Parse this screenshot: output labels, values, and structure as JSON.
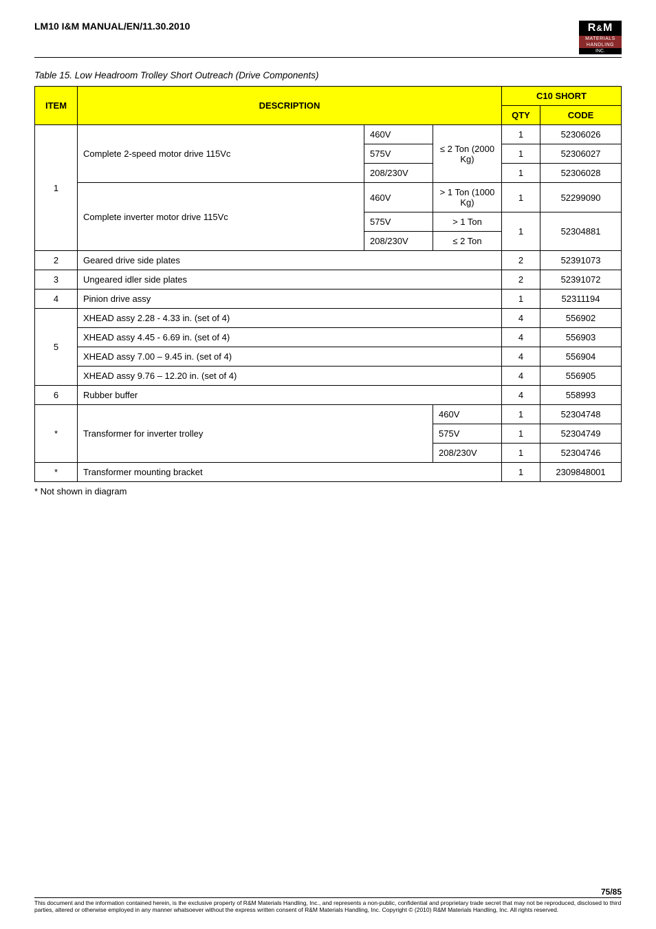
{
  "header": {
    "doc_title": "LM10 I&M MANUAL/EN/11.30.2010",
    "logo": {
      "top": "R&M",
      "mid_line1": "MATERIALS",
      "mid_line2": "HANDLING",
      "bot": "INC."
    }
  },
  "caption": "Table 15. Low Headroom Trolley Short Outreach (Drive Components)",
  "table": {
    "headers": {
      "item": "ITEM",
      "description": "DESCRIPTION",
      "c10_short": "C10 SHORT",
      "qty": "QTY",
      "code": "CODE"
    },
    "item1": {
      "num": "1",
      "desc_a": "Complete 2-speed motor drive 115Vc",
      "desc_b": "Complete inverter motor drive 115Vc",
      "volt_460": "460V",
      "volt_575": "575V",
      "volt_208": "208/230V",
      "range_le2": "≤ 2 Ton (2000 Kg)",
      "range_gt1": "> 1 Ton (1000 Kg)",
      "range_gt1_only": "> 1 Ton",
      "range_le2_only": "≤ 2 Ton",
      "rows": [
        {
          "qty": "1",
          "code": "52306026"
        },
        {
          "qty": "1",
          "code": "52306027"
        },
        {
          "qty": "1",
          "code": "52306028"
        },
        {
          "qty": "1",
          "code": "52299090"
        },
        {
          "qty": "1",
          "code": "52304881"
        }
      ]
    },
    "simple_rows": [
      {
        "item": "2",
        "desc": "Geared drive side plates",
        "qty": "2",
        "code": "52391073"
      },
      {
        "item": "3",
        "desc": "Ungeared idler side plates",
        "qty": "2",
        "code": "52391072"
      },
      {
        "item": "4",
        "desc": "Pinion drive assy",
        "qty": "1",
        "code": "52311194"
      }
    ],
    "item5": {
      "num": "5",
      "rows": [
        {
          "desc": "XHEAD assy 2.28 - 4.33 in. (set of 4)",
          "qty": "4",
          "code": "556902"
        },
        {
          "desc": "XHEAD assy 4.45 - 6.69 in. (set of 4)",
          "qty": "4",
          "code": "556903"
        },
        {
          "desc": "XHEAD assy 7.00 – 9.45 in. (set of 4)",
          "qty": "4",
          "code": "556904"
        },
        {
          "desc": "XHEAD assy 9.76 – 12.20 in. (set of 4)",
          "qty": "4",
          "code": "556905"
        }
      ]
    },
    "item6": {
      "item": "6",
      "desc": "Rubber buffer",
      "qty": "4",
      "code": "558993"
    },
    "item_star": {
      "num": "*",
      "desc": "Transformer for inverter trolley",
      "rows": [
        {
          "volt": "460V",
          "qty": "1",
          "code": "52304748"
        },
        {
          "volt": "575V",
          "qty": "1",
          "code": "52304749"
        },
        {
          "volt": "208/230V",
          "qty": "1",
          "code": "52304746"
        }
      ]
    },
    "item_star2": {
      "item": "*",
      "desc": "Transformer mounting bracket",
      "qty": "1",
      "code": "2309848001"
    }
  },
  "footnote": "* Not shown in diagram",
  "footer": {
    "page": "75/85",
    "legal": "This document and the information contained herein, is the exclusive property of R&M Materials Handling, Inc., and represents a non-public, confidential and proprietary trade secret that may not be reproduced, disclosed to third parties, altered or otherwise employed in any manner whatsoever without the express written consent of R&M Materials Handling, Inc. Copyright © (2010) R&M Materials Handling, Inc.  All rights reserved."
  }
}
